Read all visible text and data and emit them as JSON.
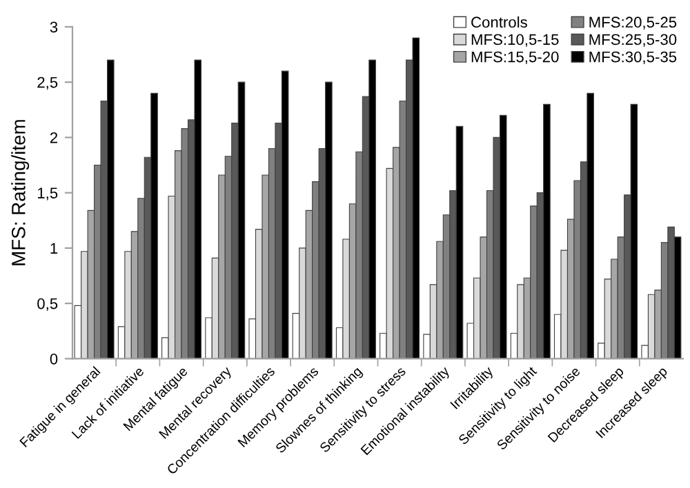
{
  "chart_data": {
    "type": "bar",
    "ylabel": "MFS: Rating/item",
    "categories": [
      "Fatigue in general",
      "Lack of initiative",
      "Mental fatigue",
      "Mental recovery",
      "Concentration difficulties",
      "Memory problems",
      "Slownes of thinking",
      "Sensitivity to stress",
      "Emotional instability",
      "Irritability",
      "Sensitivity to light",
      "Sensitivity to noise",
      "Decreased sleep",
      "Increased sleep"
    ],
    "series": [
      {
        "name": "Controls",
        "color": "#ffffff",
        "values": [
          0.48,
          0.29,
          0.19,
          0.37,
          0.36,
          0.41,
          0.28,
          0.23,
          0.22,
          0.32,
          0.23,
          0.4,
          0.14,
          0.12
        ]
      },
      {
        "name": "MFS:10,5-15",
        "color": "#d9d9d9",
        "values": [
          0.97,
          0.97,
          1.47,
          0.91,
          1.17,
          1.0,
          1.08,
          1.72,
          0.67,
          0.73,
          0.67,
          0.98,
          0.72,
          0.58
        ]
      },
      {
        "name": "MFS:15,5-20",
        "color": "#a6a6a6",
        "values": [
          1.34,
          1.15,
          1.88,
          1.66,
          1.66,
          1.34,
          1.4,
          1.91,
          1.06,
          1.1,
          0.73,
          1.26,
          0.9,
          0.62
        ]
      },
      {
        "name": "MFS:20,5-25",
        "color": "#808080",
        "values": [
          1.75,
          1.45,
          2.08,
          1.83,
          1.9,
          1.6,
          1.87,
          2.33,
          1.3,
          1.52,
          1.38,
          1.61,
          1.1,
          1.05
        ]
      },
      {
        "name": "MFS:25,5-30",
        "color": "#595959",
        "values": [
          2.33,
          1.82,
          2.16,
          2.13,
          2.13,
          1.9,
          2.37,
          2.7,
          1.52,
          2.0,
          1.5,
          1.78,
          1.48,
          1.19
        ]
      },
      {
        "name": "MFS:30,5-35",
        "color": "#000000",
        "values": [
          2.7,
          2.4,
          2.7,
          2.5,
          2.6,
          2.5,
          2.7,
          2.9,
          2.1,
          2.2,
          2.3,
          2.4,
          2.3,
          1.1
        ]
      }
    ],
    "ylim": [
      0,
      3
    ],
    "yticks": [
      0,
      {
        "value": 0.5,
        "label": "0,5"
      },
      1,
      {
        "value": 1.5,
        "label": "1,5"
      },
      2,
      {
        "value": 2.5,
        "label": "2,5"
      },
      3
    ],
    "grid": false,
    "legend": "top right"
  }
}
